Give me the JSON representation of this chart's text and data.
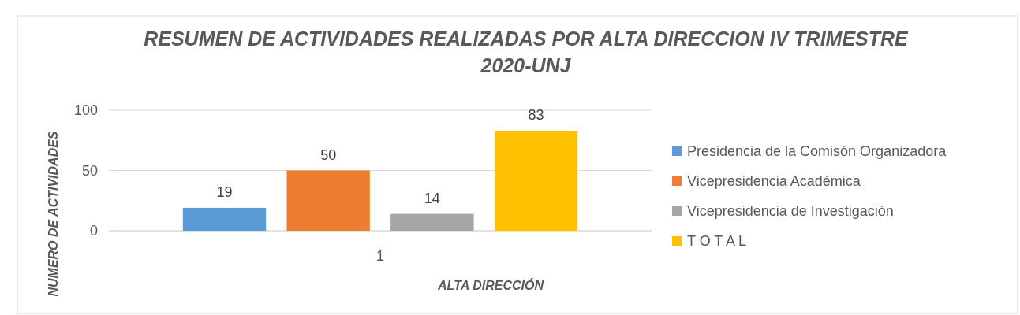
{
  "chart_data": {
    "type": "bar",
    "title": "RESUMEN DE ACTIVIDADES REALIZADAS POR ALTA DIRECCION IV TRIMESTRE 2020-UNJ",
    "xlabel": "ALTA DIRECCIÓN",
    "ylabel": "NUMERO DE ACTIVIDADES",
    "categories": [
      "1"
    ],
    "series": [
      {
        "name": "Presidencia de la Comisón Organizadora",
        "color": "#5b9bd5",
        "values": [
          19
        ]
      },
      {
        "name": "Vicepresidencia Académica",
        "color": "#ed7d31",
        "values": [
          50
        ]
      },
      {
        "name": "Vicepresidencia de Investigación",
        "color": "#a5a5a5",
        "values": [
          14
        ]
      },
      {
        "name": "T O T A L",
        "color": "#ffc000",
        "values": [
          83
        ]
      }
    ],
    "ylim": [
      0,
      100
    ],
    "yticks": [
      0,
      50,
      100
    ],
    "grid": "y",
    "legend": "right",
    "data_labels": true
  }
}
